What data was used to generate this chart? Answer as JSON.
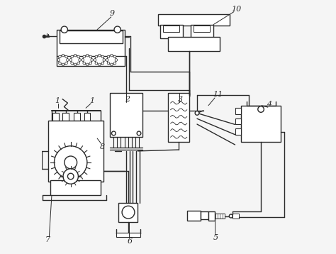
{
  "bg_color": "#f5f5f5",
  "line_color": "#2a2a2a",
  "lw": 1.0,
  "figsize": [
    4.74,
    3.58
  ],
  "dpi": 100,
  "label_fs": 8,
  "labels": {
    "9": [
      0.275,
      0.935,
      "9"
    ],
    "10": [
      0.76,
      0.955,
      "10"
    ],
    "11": [
      0.685,
      0.615,
      "11"
    ],
    "1a": [
      0.065,
      0.585,
      "1"
    ],
    "1b": [
      0.195,
      0.585,
      "1"
    ],
    "2": [
      0.335,
      0.59,
      "2"
    ],
    "3": [
      0.545,
      0.59,
      "3"
    ],
    "4": [
      0.895,
      0.57,
      "4"
    ],
    "5": [
      0.685,
      0.075,
      "5"
    ],
    "6": [
      0.345,
      0.06,
      "6"
    ],
    "7": [
      0.03,
      0.065,
      "7"
    ],
    "8": [
      0.235,
      0.43,
      "8"
    ]
  }
}
